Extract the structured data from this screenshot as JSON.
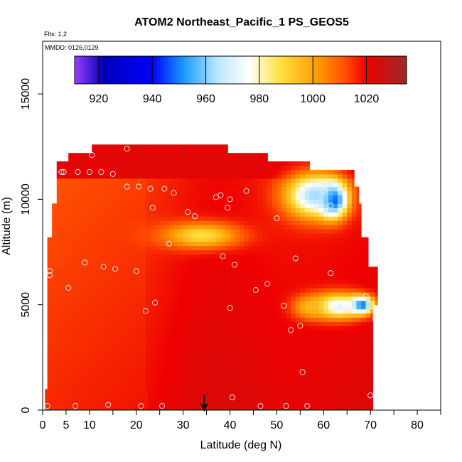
{
  "chart_data": {
    "type": "heatmap",
    "title": "ATOM2 Northeast_Pacific_1 PS_GEOS5",
    "notes": [
      "Flts: 1,2",
      "MMDD: 0126,0129"
    ],
    "xlabel": "Latitude (deg N)",
    "ylabel": "Altitude (m)",
    "xlim": [
      0,
      85
    ],
    "ylim": [
      0,
      17500
    ],
    "x_ticks": [
      0,
      5,
      10,
      20,
      30,
      40,
      50,
      60,
      70,
      80
    ],
    "y_ticks": [
      0,
      5000,
      10000,
      15000
    ],
    "colorbar": {
      "ticks": [
        920,
        940,
        960,
        980,
        1000,
        1020
      ],
      "range": [
        911,
        1035
      ],
      "stops": [
        {
          "value": 911,
          "color": "#9a3cff"
        },
        {
          "value": 922,
          "color": "#0000b8"
        },
        {
          "value": 940,
          "color": "#0000ff"
        },
        {
          "value": 952,
          "color": "#1a9cff"
        },
        {
          "value": 964,
          "color": "#b8e6ff"
        },
        {
          "value": 976,
          "color": "#ffffff"
        },
        {
          "value": 988,
          "color": "#ffe040"
        },
        {
          "value": 1002,
          "color": "#ff9900"
        },
        {
          "value": 1012,
          "color": "#ff5000"
        },
        {
          "value": 1020,
          "color": "#ee0000"
        },
        {
          "value": 1035,
          "color": "#9a2a2a"
        }
      ]
    },
    "profile_extent": [
      {
        "alt": 0,
        "lat_min": 0.5,
        "lat_max": 70.5
      },
      {
        "alt": 1000,
        "lat_min": 1.0,
        "lat_max": 70.5
      },
      {
        "alt": 3000,
        "lat_min": 1.0,
        "lat_max": 70.5
      },
      {
        "alt": 5000,
        "lat_min": 1.0,
        "lat_max": 71.5
      },
      {
        "alt": 6800,
        "lat_min": 1.0,
        "lat_max": 69.5
      },
      {
        "alt": 8200,
        "lat_min": 2.0,
        "lat_max": 68.0
      },
      {
        "alt": 9700,
        "lat_min": 3.0,
        "lat_max": 67.5
      },
      {
        "alt": 10500,
        "lat_min": 3.0,
        "lat_max": 66.5
      },
      {
        "alt": 11300,
        "lat_min": 3.0,
        "lat_max": 57.0
      },
      {
        "alt": 11800,
        "lat_min": 5.5,
        "lat_max": 48.0
      },
      {
        "alt": 12200,
        "lat_min": 10.5,
        "lat_max": 39.5
      },
      {
        "alt": 12500,
        "lat_min": 10.5,
        "lat_max": 39.5
      }
    ],
    "anomalies": [
      {
        "lat": 62,
        "alt": 10000,
        "value": 928,
        "rlat": 3.2,
        "ralt": 900
      },
      {
        "lat": 58,
        "alt": 10200,
        "value": 962,
        "rlat": 7.0,
        "ralt": 1200
      },
      {
        "lat": 34,
        "alt": 8300,
        "value": 988,
        "rlat": 9.5,
        "ralt": 700
      },
      {
        "lat": 68,
        "alt": 5000,
        "value": 932,
        "rlat": 3.0,
        "ralt": 450
      },
      {
        "lat": 63,
        "alt": 4950,
        "value": 970,
        "rlat": 6.5,
        "ralt": 700
      },
      {
        "lat": 57,
        "alt": 4900,
        "value": 996,
        "rlat": 4.0,
        "ralt": 600
      }
    ],
    "points": [
      {
        "lat": 1,
        "alt": 200
      },
      {
        "lat": 7,
        "alt": 200
      },
      {
        "lat": 14,
        "alt": 250
      },
      {
        "lat": 21,
        "alt": 200
      },
      {
        "lat": 25.5,
        "alt": 200
      },
      {
        "lat": 40.5,
        "alt": 600
      },
      {
        "lat": 46.5,
        "alt": 200
      },
      {
        "lat": 52,
        "alt": 200
      },
      {
        "lat": 56.5,
        "alt": 200
      },
      {
        "lat": 70,
        "alt": 700
      },
      {
        "lat": 55.5,
        "alt": 1800
      },
      {
        "lat": 53,
        "alt": 3800
      },
      {
        "lat": 55,
        "alt": 4000
      },
      {
        "lat": 71,
        "alt": 4300
      },
      {
        "lat": 22,
        "alt": 4700
      },
      {
        "lat": 24,
        "alt": 5100
      },
      {
        "lat": 40,
        "alt": 4850
      },
      {
        "lat": 51.5,
        "alt": 4950
      },
      {
        "lat": 69,
        "alt": 5400
      },
      {
        "lat": 45.5,
        "alt": 5700
      },
      {
        "lat": 48,
        "alt": 6000
      },
      {
        "lat": 5.5,
        "alt": 5800
      },
      {
        "lat": 1.5,
        "alt": 6400
      },
      {
        "lat": 1.5,
        "alt": 6600
      },
      {
        "lat": 9,
        "alt": 7000
      },
      {
        "lat": 13,
        "alt": 6800
      },
      {
        "lat": 15.5,
        "alt": 6700
      },
      {
        "lat": 20,
        "alt": 6600
      },
      {
        "lat": 41,
        "alt": 6900
      },
      {
        "lat": 38.5,
        "alt": 7300
      },
      {
        "lat": 54,
        "alt": 7200
      },
      {
        "lat": 61.5,
        "alt": 6500
      },
      {
        "lat": 27,
        "alt": 7900
      },
      {
        "lat": 23.5,
        "alt": 9600
      },
      {
        "lat": 31,
        "alt": 9400
      },
      {
        "lat": 32.5,
        "alt": 9200
      },
      {
        "lat": 39.5,
        "alt": 9600
      },
      {
        "lat": 50,
        "alt": 9100
      },
      {
        "lat": 61.5,
        "alt": 9700
      },
      {
        "lat": 18,
        "alt": 10600
      },
      {
        "lat": 20.5,
        "alt": 10600
      },
      {
        "lat": 23,
        "alt": 10500
      },
      {
        "lat": 26,
        "alt": 10500
      },
      {
        "lat": 28,
        "alt": 10300
      },
      {
        "lat": 37,
        "alt": 10100
      },
      {
        "lat": 38,
        "alt": 10200
      },
      {
        "lat": 40,
        "alt": 10000
      },
      {
        "lat": 43.5,
        "alt": 10400
      },
      {
        "lat": 60,
        "alt": 10400
      },
      {
        "lat": 63.5,
        "alt": 10400
      },
      {
        "lat": 4,
        "alt": 11300
      },
      {
        "lat": 4.5,
        "alt": 11300
      },
      {
        "lat": 7.5,
        "alt": 11300
      },
      {
        "lat": 10,
        "alt": 11300
      },
      {
        "lat": 12.5,
        "alt": 11300
      },
      {
        "lat": 15,
        "alt": 11200
      },
      {
        "lat": 10.5,
        "alt": 12100
      },
      {
        "lat": 18,
        "alt": 12400
      }
    ],
    "marker_lat": 34.5,
    "top_marker_lat": 30
  }
}
